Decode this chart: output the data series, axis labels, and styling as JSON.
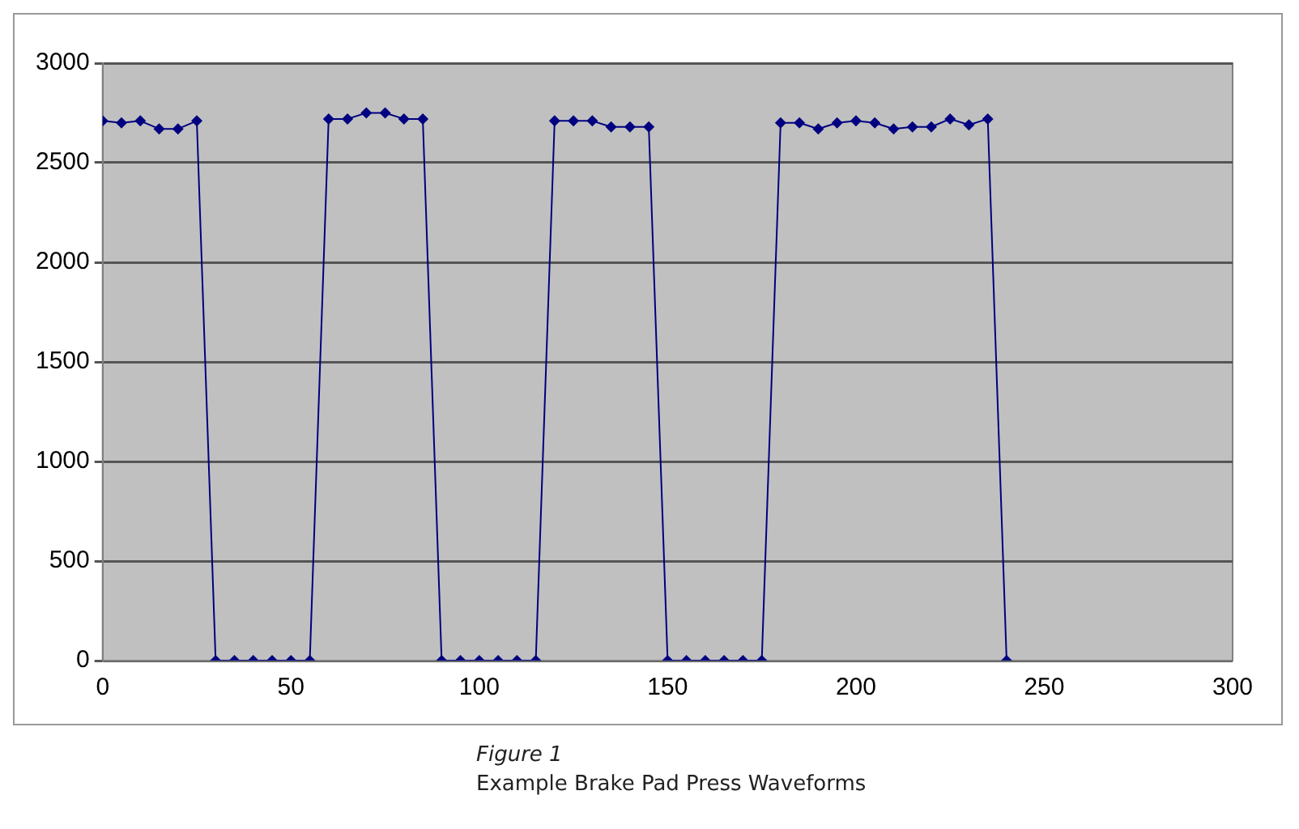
{
  "chart_data": {
    "type": "line",
    "x": [
      0,
      5,
      10,
      15,
      20,
      25,
      30,
      35,
      40,
      45,
      50,
      55,
      60,
      65,
      70,
      75,
      80,
      85,
      90,
      95,
      100,
      105,
      110,
      115,
      120,
      125,
      130,
      135,
      140,
      145,
      150,
      155,
      160,
      165,
      170,
      175,
      180,
      185,
      190,
      195,
      200,
      205,
      210,
      215,
      220,
      225,
      230,
      235,
      240
    ],
    "series": [
      {
        "color": "#000080",
        "values": [
          2710,
          2700,
          2710,
          2670,
          2670,
          2710,
          0,
          0,
          0,
          0,
          0,
          0,
          2720,
          2720,
          2750,
          2750,
          2720,
          2720,
          0,
          0,
          0,
          0,
          0,
          0,
          2710,
          2710,
          2710,
          2680,
          2680,
          2680,
          0,
          0,
          0,
          0,
          0,
          0,
          2700,
          2700,
          2670,
          2700,
          2710,
          2700,
          2670,
          2680,
          2680,
          2720,
          2690,
          2720,
          0
        ]
      }
    ],
    "xlim": [
      0,
      300
    ],
    "xticks": [
      0,
      50,
      100,
      150,
      200,
      250,
      300
    ],
    "ylim": [
      0,
      3000
    ],
    "yticks": [
      0,
      500,
      1000,
      1500,
      2000,
      2500,
      3000
    ],
    "grid": "y",
    "legend": false,
    "marker": "diamond",
    "line_style": "solid",
    "annotations": [
      "Figure 1",
      "Example Brake Pad Press Waveforms"
    ]
  }
}
